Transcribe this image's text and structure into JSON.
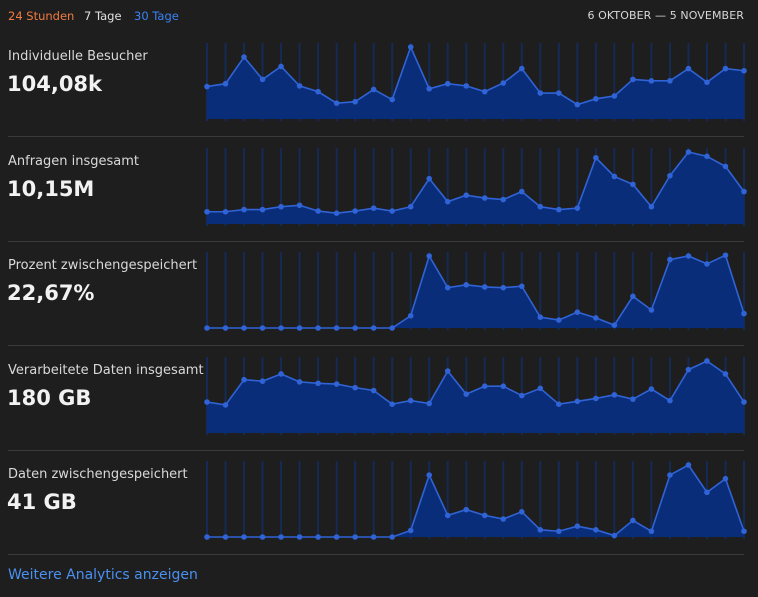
{
  "topbar": {
    "ranges": [
      "24 Stunden",
      "7 Tage",
      "30 Tage"
    ],
    "date_range": "6 OKTOBER — 5 NOVEMBER"
  },
  "colors": {
    "selected_range": "#3b82f6",
    "range_24h": "#f07b3f",
    "fill": "#0a2d7a",
    "line": "#2f63d6",
    "bar": "#152a55"
  },
  "metrics": [
    {
      "label": "Individuelle Besucher",
      "value": "104,08k"
    },
    {
      "label": "Anfragen insgesamt",
      "value": "10,15M"
    },
    {
      "label": "Prozent zwischengespeichert",
      "value": "22,67%"
    },
    {
      "label": "Verarbeitete Daten insgesamt",
      "value": "180 GB"
    },
    {
      "label": "Daten zwischengespeichert",
      "value": "41 GB"
    }
  ],
  "footer": {
    "more_link": "Weitere Analytics anzeigen"
  },
  "chart_data": [
    {
      "type": "area",
      "x": [
        1,
        2,
        3,
        4,
        5,
        6,
        7,
        8,
        9,
        10,
        11,
        12,
        13,
        14,
        15,
        16,
        17,
        18,
        19,
        20,
        21,
        22,
        23,
        24,
        25,
        26,
        27,
        28,
        29,
        30
      ],
      "series": [
        {
          "values": [
            45,
            49,
            86,
            55,
            73,
            46,
            38,
            22,
            24,
            41,
            27,
            100,
            42,
            49,
            46,
            38,
            50,
            70,
            36,
            36,
            20,
            28,
            32,
            55,
            53,
            53,
            70,
            51,
            70,
            67
          ]
        }
      ],
      "ylim": [
        0,
        100
      ]
    },
    {
      "type": "area",
      "x": [
        1,
        2,
        3,
        4,
        5,
        6,
        7,
        8,
        9,
        10,
        11,
        12,
        13,
        14,
        15,
        16,
        17,
        18,
        19,
        20,
        21,
        22,
        23,
        24,
        25,
        26,
        27,
        28,
        29,
        30
      ],
      "series": [
        {
          "values": [
            17,
            17,
            20,
            20,
            24,
            26,
            18,
            15,
            18,
            22,
            18,
            24,
            63,
            31,
            40,
            36,
            34,
            45,
            24,
            20,
            22,
            92,
            66,
            55,
            24,
            67,
            100,
            94,
            80,
            45
          ]
        }
      ],
      "ylim": [
        0,
        100
      ]
    },
    {
      "type": "area",
      "x": [
        1,
        2,
        3,
        4,
        5,
        6,
        7,
        8,
        9,
        10,
        11,
        12,
        13,
        14,
        15,
        16,
        17,
        18,
        19,
        20,
        21,
        22,
        23,
        24,
        25,
        26,
        27,
        28,
        29,
        30
      ],
      "series": [
        {
          "values": [
            0,
            0,
            0,
            0,
            0,
            0,
            0,
            0,
            0,
            0,
            0,
            17,
            100,
            56,
            60,
            57,
            56,
            58,
            15,
            11,
            22,
            14,
            4,
            44,
            25,
            95,
            100,
            89,
            101,
            20
          ]
        }
      ],
      "ylim": [
        0,
        100
      ]
    },
    {
      "type": "area",
      "x": [
        1,
        2,
        3,
        4,
        5,
        6,
        7,
        8,
        9,
        10,
        11,
        12,
        13,
        14,
        15,
        16,
        17,
        18,
        19,
        20,
        21,
        22,
        23,
        24,
        25,
        26,
        27,
        28,
        29,
        30
      ],
      "series": [
        {
          "values": [
            43,
            39,
            74,
            72,
            82,
            71,
            69,
            68,
            63,
            59,
            40,
            45,
            41,
            86,
            54,
            65,
            65,
            52,
            62,
            40,
            44,
            48,
            53,
            47,
            61,
            45,
            88,
            100,
            82,
            43
          ]
        }
      ],
      "ylim": [
        0,
        100
      ]
    },
    {
      "type": "area",
      "x": [
        1,
        2,
        3,
        4,
        5,
        6,
        7,
        8,
        9,
        10,
        11,
        12,
        13,
        14,
        15,
        16,
        17,
        18,
        19,
        20,
        21,
        22,
        23,
        24,
        25,
        26,
        27,
        28,
        29,
        30
      ],
      "series": [
        {
          "values": [
            0,
            0,
            0,
            0,
            0,
            0,
            0,
            0,
            0,
            0,
            0,
            9,
            86,
            30,
            38,
            30,
            25,
            35,
            10,
            8,
            15,
            10,
            2,
            23,
            8,
            86,
            100,
            62,
            81,
            8
          ]
        }
      ],
      "ylim": [
        0,
        100
      ]
    }
  ]
}
